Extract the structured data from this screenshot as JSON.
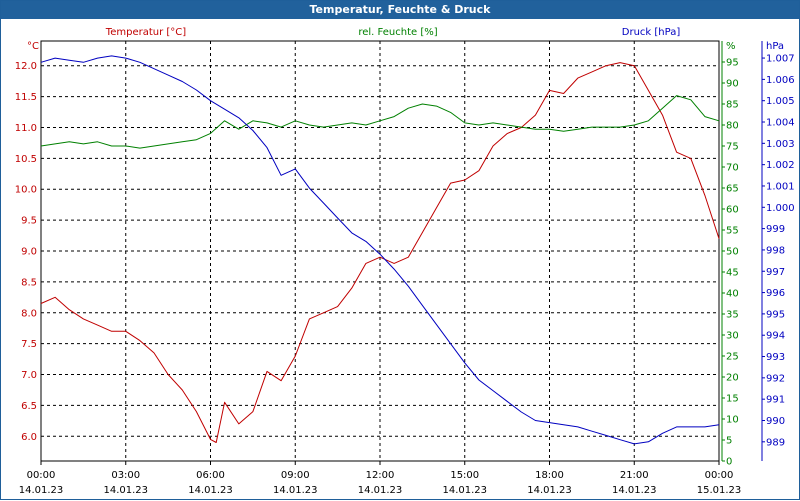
{
  "window": {
    "title": "Temperatur, Feuchte & Druck"
  },
  "colors": {
    "temperature": "#c00000",
    "humidity": "#008000",
    "pressure": "#0000c0",
    "titlebar": "#21619c"
  },
  "chart_data": {
    "type": "line",
    "title": "Temperatur, Feuchte & Druck",
    "x_ticks": [
      {
        "time": "00:00",
        "date": "14.01.23"
      },
      {
        "time": "03:00",
        "date": "14.01.23"
      },
      {
        "time": "06:00",
        "date": "14.01.23"
      },
      {
        "time": "09:00",
        "date": "14.01.23"
      },
      {
        "time": "12:00",
        "date": "14.01.23"
      },
      {
        "time": "15:00",
        "date": "14.01.23"
      },
      {
        "time": "18:00",
        "date": "14.01.23"
      },
      {
        "time": "21:00",
        "date": "14.01.23"
      },
      {
        "time": "00:00",
        "date": "15.01.23"
      }
    ],
    "x_range_hours": [
      0,
      24
    ],
    "axes": {
      "temperature": {
        "label": "Temperatur [°C]",
        "unit": "°C",
        "ylim": [
          5.6,
          12.4
        ],
        "ticks": [
          "6.0",
          "6.5",
          "7.0",
          "7.5",
          "8.0",
          "8.5",
          "9.0",
          "9.5",
          "10.0",
          "10.5",
          "11.0",
          "11.5",
          "12.0"
        ]
      },
      "humidity": {
        "label": "rel. Feuchte [%]",
        "unit": "%",
        "ylim": [
          0,
          100
        ],
        "ticks": [
          "0",
          "5",
          "10",
          "15",
          "20",
          "25",
          "30",
          "35",
          "40",
          "45",
          "50",
          "55",
          "60",
          "65",
          "70",
          "75",
          "80",
          "85",
          "90",
          "95"
        ]
      },
      "pressure": {
        "label": "Druck [hPa]",
        "unit": "hPa",
        "ylim": [
          988.1,
          1007.8
        ],
        "ticks": [
          "989",
          "990",
          "991",
          "992",
          "993",
          "994",
          "995",
          "996",
          "997",
          "998",
          "999",
          "1.000",
          "1.001",
          "1.002",
          "1.003",
          "1.004",
          "1.005",
          "1.006",
          "1.007"
        ]
      }
    },
    "series": [
      {
        "name": "Temperatur",
        "axis": "temperature",
        "color": "#c00000",
        "x": [
          0,
          0.5,
          1,
          1.5,
          2,
          2.5,
          3,
          3.5,
          4,
          4.5,
          5,
          5.5,
          6,
          6.2,
          6.5,
          7,
          7.5,
          8,
          8.5,
          9,
          9.5,
          10,
          10.5,
          11,
          11.5,
          12,
          12.5,
          13,
          13.5,
          14,
          14.5,
          15,
          15.5,
          16,
          16.5,
          17,
          17.5,
          18,
          18.5,
          19,
          19.5,
          20,
          20.5,
          21,
          21.5,
          22,
          22.5,
          23,
          23.5,
          24
        ],
        "values": [
          8.15,
          8.25,
          8.05,
          7.9,
          7.8,
          7.7,
          7.7,
          7.55,
          7.35,
          7.0,
          6.75,
          6.4,
          5.95,
          5.9,
          6.55,
          6.2,
          6.4,
          7.05,
          6.9,
          7.3,
          7.9,
          8.0,
          8.1,
          8.4,
          8.8,
          8.9,
          8.8,
          8.9,
          9.3,
          9.7,
          10.1,
          10.15,
          10.3,
          10.7,
          10.9,
          11.0,
          11.2,
          11.6,
          11.55,
          11.8,
          11.9,
          12.0,
          12.05,
          12.0,
          11.6,
          11.2,
          10.6,
          10.5,
          9.9,
          9.2
        ]
      },
      {
        "name": "rel. Feuchte",
        "axis": "humidity",
        "color": "#008000",
        "x": [
          0,
          0.5,
          1,
          1.5,
          2,
          2.5,
          3,
          3.5,
          4,
          4.5,
          5,
          5.5,
          6,
          6.5,
          7,
          7.5,
          8,
          8.5,
          9,
          9.5,
          10,
          10.5,
          11,
          11.5,
          12,
          12.5,
          13,
          13.5,
          14,
          14.5,
          15,
          15.5,
          16,
          16.5,
          17,
          17.5,
          18,
          18.5,
          19,
          19.5,
          20,
          20.5,
          21,
          21.5,
          22,
          22.5,
          23,
          23.5,
          24
        ],
        "values": [
          75,
          75.5,
          76,
          75.5,
          76,
          75,
          75,
          74.5,
          75,
          75.5,
          76,
          76.5,
          78,
          81,
          79,
          81,
          80.5,
          79.5,
          81,
          80,
          79.5,
          80,
          80.5,
          80,
          81,
          82,
          84,
          85,
          84.5,
          83,
          80.5,
          80,
          80.5,
          80,
          79.5,
          79,
          79,
          78.5,
          79,
          79.5,
          79.5,
          79.5,
          80,
          81,
          84,
          87,
          86,
          82,
          81
        ]
      },
      {
        "name": "Druck",
        "axis": "pressure",
        "color": "#0000c0",
        "x": [
          0,
          0.5,
          1,
          1.5,
          2,
          2.5,
          3,
          3.5,
          4,
          4.5,
          5,
          5.5,
          6,
          6.5,
          7,
          7.5,
          8,
          8.5,
          9,
          9.5,
          10,
          10.5,
          11,
          11.5,
          12,
          12.5,
          13,
          13.5,
          14,
          14.5,
          15,
          15.5,
          16,
          16.5,
          17,
          17.5,
          18,
          18.5,
          19,
          19.5,
          20,
          20.5,
          21,
          21.5,
          22,
          22.5,
          23,
          23.5,
          24
        ],
        "values": [
          1006.8,
          1007.0,
          1006.9,
          1006.8,
          1007.0,
          1007.1,
          1007.0,
          1006.8,
          1006.5,
          1006.2,
          1005.9,
          1005.5,
          1005.0,
          1004.6,
          1004.2,
          1003.6,
          1002.8,
          1001.5,
          1001.8,
          1000.9,
          1000.2,
          999.5,
          998.8,
          998.4,
          997.8,
          997.1,
          996.3,
          995.4,
          994.5,
          993.6,
          992.7,
          991.9,
          991.4,
          990.9,
          990.4,
          990.0,
          989.9,
          989.8,
          989.7,
          989.5,
          989.3,
          989.1,
          988.9,
          989.0,
          989.4,
          989.7,
          989.7,
          989.7,
          989.8
        ]
      }
    ]
  }
}
